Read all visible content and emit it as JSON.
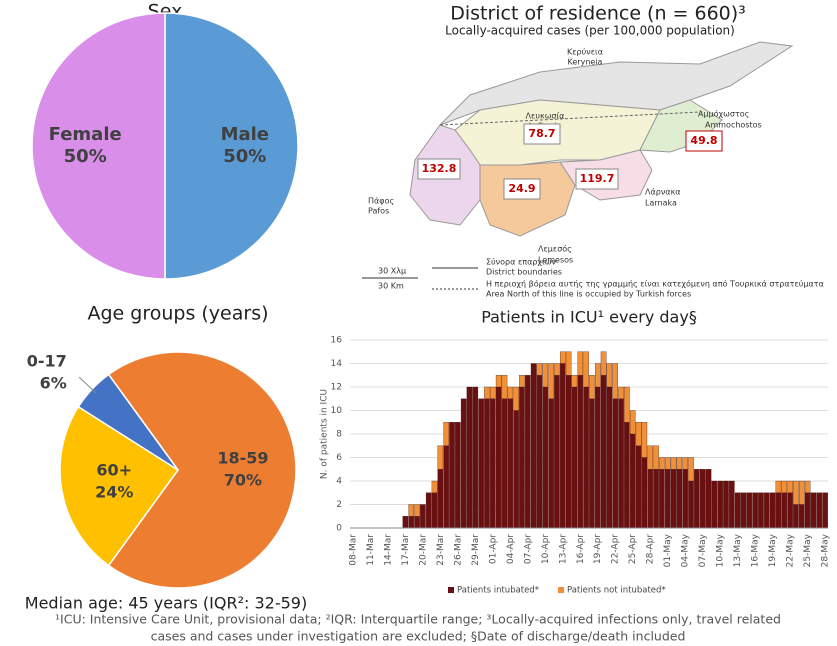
{
  "chart_data": [
    {
      "type": "pie",
      "title": "Sex",
      "categories": [
        "Male",
        "Female"
      ],
      "values": [
        50,
        50
      ],
      "value_labels": [
        "50%",
        "50%"
      ],
      "colors": [
        "#5b9bd5",
        "#d98ee9"
      ]
    },
    {
      "type": "pie",
      "title": "Age groups (years)",
      "categories": [
        "18-59",
        "60+",
        "0-17"
      ],
      "values": [
        70,
        24,
        6
      ],
      "value_labels": [
        "70%",
        "24%",
        "6%"
      ],
      "colors": [
        "#ed7d31",
        "#ffc000",
        "#4472c4"
      ],
      "annotation": "Median age: 45 years (IQR²: 32-59)"
    },
    {
      "type": "bar",
      "title": "Patients in ICU¹ every day§",
      "y_label": "N. of patients in ICU",
      "categories": [
        "08-Mar",
        null,
        null,
        "11-Mar",
        null,
        null,
        "14-Mar",
        null,
        null,
        "17-Mar",
        null,
        null,
        "20-Mar",
        null,
        null,
        "23-Mar",
        null,
        null,
        "26-Mar",
        null,
        null,
        "29-Mar",
        null,
        null,
        "01-Apr",
        null,
        null,
        "04-Apr",
        null,
        null,
        "07-Apr",
        null,
        null,
        "10-Apr",
        null,
        null,
        "13-Apr",
        null,
        null,
        "16-Apr",
        null,
        null,
        "19-Apr",
        null,
        null,
        "22-Apr",
        null,
        null,
        "25-Apr",
        null,
        null,
        "28-Apr",
        null,
        null,
        "01-May",
        null,
        null,
        "04-May",
        null,
        null,
        "07-May",
        null,
        null,
        "10-May",
        null,
        null,
        "13-May",
        null,
        null,
        "16-May",
        null,
        null,
        "19-May",
        null,
        null,
        "22-May",
        null,
        null,
        "25-May",
        null,
        null,
        "28-May"
      ],
      "series": [
        {
          "name": "Patients intubated*",
          "color": "#6b1010",
          "values": [
            0,
            0,
            0,
            0,
            0,
            0,
            0,
            0,
            0,
            1,
            1,
            1,
            2,
            3,
            3,
            5,
            7,
            9,
            9,
            11,
            12,
            12,
            11,
            11,
            11,
            12,
            11,
            11,
            10,
            12,
            13,
            14,
            13,
            12,
            11,
            13,
            14,
            13,
            12,
            13,
            12,
            11,
            12,
            13,
            12,
            11,
            11,
            9,
            8,
            7,
            6,
            5,
            5,
            5,
            5,
            5,
            5,
            5,
            4,
            5,
            5,
            5,
            4,
            4,
            4,
            4,
            3,
            3,
            3,
            3,
            3,
            3,
            3,
            3,
            3,
            3,
            2,
            2,
            3,
            3,
            3,
            3
          ]
        },
        {
          "name": "Patients not intubated*",
          "color": "#f0913a",
          "values": [
            0,
            0,
            0,
            0,
            0,
            0,
            0,
            0,
            0,
            0,
            1,
            1,
            0,
            0,
            1,
            2,
            2,
            0,
            0,
            0,
            0,
            0,
            0,
            1,
            1,
            1,
            2,
            1,
            2,
            1,
            0,
            0,
            1,
            2,
            3,
            1,
            1,
            2,
            1,
            2,
            3,
            2,
            2,
            2,
            2,
            3,
            1,
            3,
            2,
            2,
            3,
            2,
            2,
            1,
            1,
            1,
            1,
            1,
            2,
            0,
            0,
            0,
            0,
            0,
            0,
            0,
            0,
            0,
            0,
            0,
            0,
            0,
            0,
            1,
            1,
            1,
            2,
            2,
            1,
            0,
            0,
            0
          ]
        }
      ],
      "stacked": true,
      "ylim": [
        0,
        16
      ],
      "yticks": [
        0,
        2,
        4,
        6,
        8,
        10,
        12,
        14,
        16
      ],
      "grid": true,
      "legend": "bottom"
    }
  ],
  "map": {
    "title": "District of residence (n = 660)³",
    "subtitle": "Locally-acquired cases (per 100,000 population)",
    "places": {
      "keryneia_gr": "Κερύνεια",
      "keryneia_en": "Keryneia",
      "lefkosia_gr": "Λευκωσία",
      "lefkosia_en": "Lefkosia",
      "ammochostos_gr": "Αμμόχωστος",
      "ammochostos_en": "Ammochostos",
      "larnaka_gr": "Λάρνακα",
      "larnaka_en": "Larnaka",
      "pafos_gr": "Πάφος",
      "pafos_en": "Pafos",
      "lemesos_gr": "Λεμεσός",
      "lemesos_en": "Lemesos"
    },
    "rates": {
      "lefkosia": 78.7,
      "pafos": 132.8,
      "lemesos": 24.9,
      "larnaka": 119.7,
      "ammochostos": 49.8
    },
    "legend": {
      "scale_gr": "30 Χλμ",
      "scale_en": "30 Km",
      "boundary_gr": "Σύνορα επαρχιών",
      "boundary_en": "District boundaries",
      "line_gr": "Η περιοχή βόρεια αυτής της γραμμής είναι κατεχόμενη από Τουρκικά στρατεύματα",
      "line_en": "Area North of this line is occupied by Turkish forces"
    }
  },
  "footnote": [
    "¹ICU: Intensive Care Unit, provisional data; ²IQR: Interquartile range; ³Locally-acquired infections only, travel related",
    "cases and cases under investigation are excluded; §Date of discharge/death included"
  ]
}
